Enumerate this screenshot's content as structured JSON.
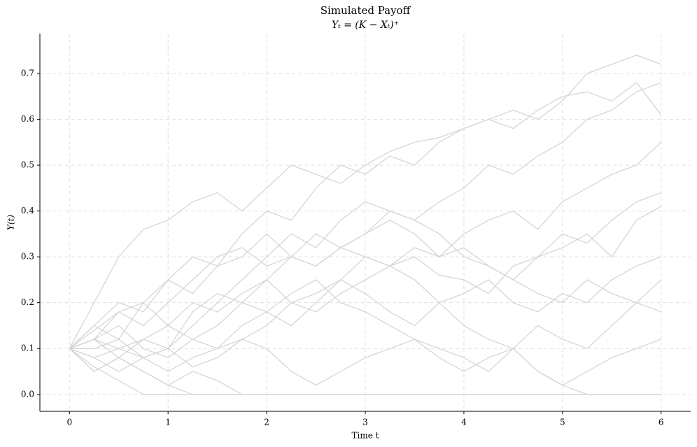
{
  "chart_data": {
    "type": "line",
    "title": "Simulated Payoff",
    "subtitle": "Yₜ = (K − Xₜ)⁺",
    "x_label": "Time t",
    "y_label": "Y(t)",
    "grid": true,
    "xlim": [
      -0.3,
      6.3
    ],
    "ylim": [
      -0.037,
      0.787
    ],
    "xticks": [
      0,
      1,
      2,
      3,
      4,
      5,
      6
    ],
    "yticks": [
      {
        "value": 0,
        "label": "0.0"
      },
      0.1,
      0.2,
      0.3,
      0.4,
      0.5,
      0.6,
      0.7
    ],
    "x": [
      0,
      0.25,
      0.5,
      0.75,
      1,
      1.25,
      1.5,
      1.75,
      2,
      2.25,
      2.5,
      2.75,
      3,
      3.25,
      3.5,
      3.75,
      4,
      4.25,
      4.5,
      4.75,
      5,
      5.25,
      5.5,
      5.75,
      6
    ],
    "series": [
      {
        "color": "#d3d3d3",
        "values": [
          0.1,
          0.2,
          0.3,
          0.36,
          0.38,
          0.42,
          0.44,
          0.4,
          0.45,
          0.5,
          0.48,
          0.46,
          0.5,
          0.53,
          0.55,
          0.56,
          0.58,
          0.6,
          0.62,
          0.6,
          0.64,
          0.7,
          0.72,
          0.74,
          0.72
        ]
      },
      {
        "color": "#d3d3d3",
        "values": [
          0.1,
          0.15,
          0.12,
          0.2,
          0.25,
          0.3,
          0.28,
          0.35,
          0.4,
          0.38,
          0.45,
          0.5,
          0.48,
          0.52,
          0.5,
          0.55,
          0.58,
          0.6,
          0.58,
          0.62,
          0.65,
          0.66,
          0.64,
          0.68,
          0.61
        ]
      },
      {
        "color": "#d3d3d3",
        "values": [
          0.1,
          0.05,
          0.08,
          0.12,
          0.1,
          0.18,
          0.22,
          0.2,
          0.25,
          0.3,
          0.28,
          0.32,
          0.35,
          0.4,
          0.38,
          0.42,
          0.45,
          0.5,
          0.48,
          0.52,
          0.55,
          0.6,
          0.62,
          0.66,
          0.68
        ]
      },
      {
        "color": "#d3d3d3",
        "values": [
          0.1,
          0.12,
          0.08,
          0.05,
          0.02,
          0,
          0,
          0,
          0,
          0,
          0,
          0,
          0,
          0,
          0,
          0,
          0,
          0,
          0,
          0,
          0,
          0,
          0,
          0,
          0
        ]
      },
      {
        "color": "#d3d3d3",
        "values": [
          0.1,
          0.14,
          0.18,
          0.15,
          0.2,
          0.25,
          0.3,
          0.32,
          0.28,
          0.3,
          0.35,
          0.32,
          0.3,
          0.28,
          0.32,
          0.3,
          0.35,
          0.38,
          0.4,
          0.36,
          0.42,
          0.45,
          0.48,
          0.5,
          0.55
        ]
      },
      {
        "color": "#d3d3d3",
        "values": [
          0.1,
          0.08,
          0.1,
          0.12,
          0.15,
          0.2,
          0.18,
          0.22,
          0.25,
          0.2,
          0.18,
          0.22,
          0.25,
          0.28,
          0.3,
          0.26,
          0.25,
          0.22,
          0.28,
          0.3,
          0.35,
          0.33,
          0.38,
          0.42,
          0.44
        ]
      },
      {
        "color": "#d3d3d3",
        "values": [
          0.1,
          0.06,
          0.03,
          0,
          0,
          0,
          0,
          0,
          0,
          0,
          0,
          0,
          0,
          0,
          0,
          0,
          0,
          0,
          0,
          0,
          0,
          0,
          0,
          0,
          0
        ]
      },
      {
        "color": "#d3d3d3",
        "values": [
          0.1,
          0.12,
          0.15,
          0.1,
          0.08,
          0.12,
          0.15,
          0.2,
          0.18,
          0.15,
          0.2,
          0.25,
          0.22,
          0.18,
          0.15,
          0.2,
          0.22,
          0.25,
          0.2,
          0.18,
          0.22,
          0.2,
          0.25,
          0.28,
          0.3
        ]
      },
      {
        "color": "#d3d3d3",
        "values": [
          0.1,
          0.08,
          0.05,
          0.08,
          0.1,
          0.06,
          0.08,
          0.12,
          0.1,
          0.05,
          0.02,
          0.05,
          0.08,
          0.1,
          0.12,
          0.1,
          0.08,
          0.05,
          0.1,
          0.15,
          0.12,
          0.1,
          0.15,
          0.2,
          0.18
        ]
      },
      {
        "color": "#d3d3d3",
        "values": [
          0.1,
          0.12,
          0.1,
          0.08,
          0.05,
          0.08,
          0.1,
          0.12,
          0.15,
          0.2,
          0.22,
          0.25,
          0.3,
          0.28,
          0.25,
          0.2,
          0.15,
          0.12,
          0.1,
          0.05,
          0.02,
          0,
          0,
          0,
          0
        ]
      },
      {
        "color": "#d3d3d3",
        "values": [
          0.1,
          0.15,
          0.2,
          0.18,
          0.25,
          0.22,
          0.28,
          0.3,
          0.35,
          0.3,
          0.28,
          0.32,
          0.35,
          0.38,
          0.35,
          0.3,
          0.32,
          0.28,
          0.25,
          0.3,
          0.32,
          0.35,
          0.3,
          0.38,
          0.41
        ]
      },
      {
        "color": "#d3d3d3",
        "values": [
          0.1,
          0.05,
          0.08,
          0.05,
          0.02,
          0.05,
          0.03,
          0,
          0,
          0,
          0,
          0,
          0,
          0,
          0,
          0,
          0,
          0,
          0,
          0,
          0,
          0,
          0,
          0,
          0
        ]
      },
      {
        "color": "#d3d3d3",
        "values": [
          0.1,
          0.12,
          0.18,
          0.2,
          0.15,
          0.12,
          0.1,
          0.15,
          0.18,
          0.22,
          0.25,
          0.2,
          0.18,
          0.15,
          0.12,
          0.08,
          0.05,
          0.08,
          0.1,
          0.05,
          0.02,
          0.05,
          0.08,
          0.1,
          0.12
        ]
      },
      {
        "color": "#d3d3d3",
        "values": [
          0.1,
          0.1,
          0.12,
          0.08,
          0.1,
          0.15,
          0.2,
          0.25,
          0.3,
          0.35,
          0.32,
          0.38,
          0.42,
          0.4,
          0.38,
          0.35,
          0.3,
          0.28,
          0.25,
          0.22,
          0.2,
          0.25,
          0.22,
          0.2,
          0.25
        ]
      }
    ]
  }
}
